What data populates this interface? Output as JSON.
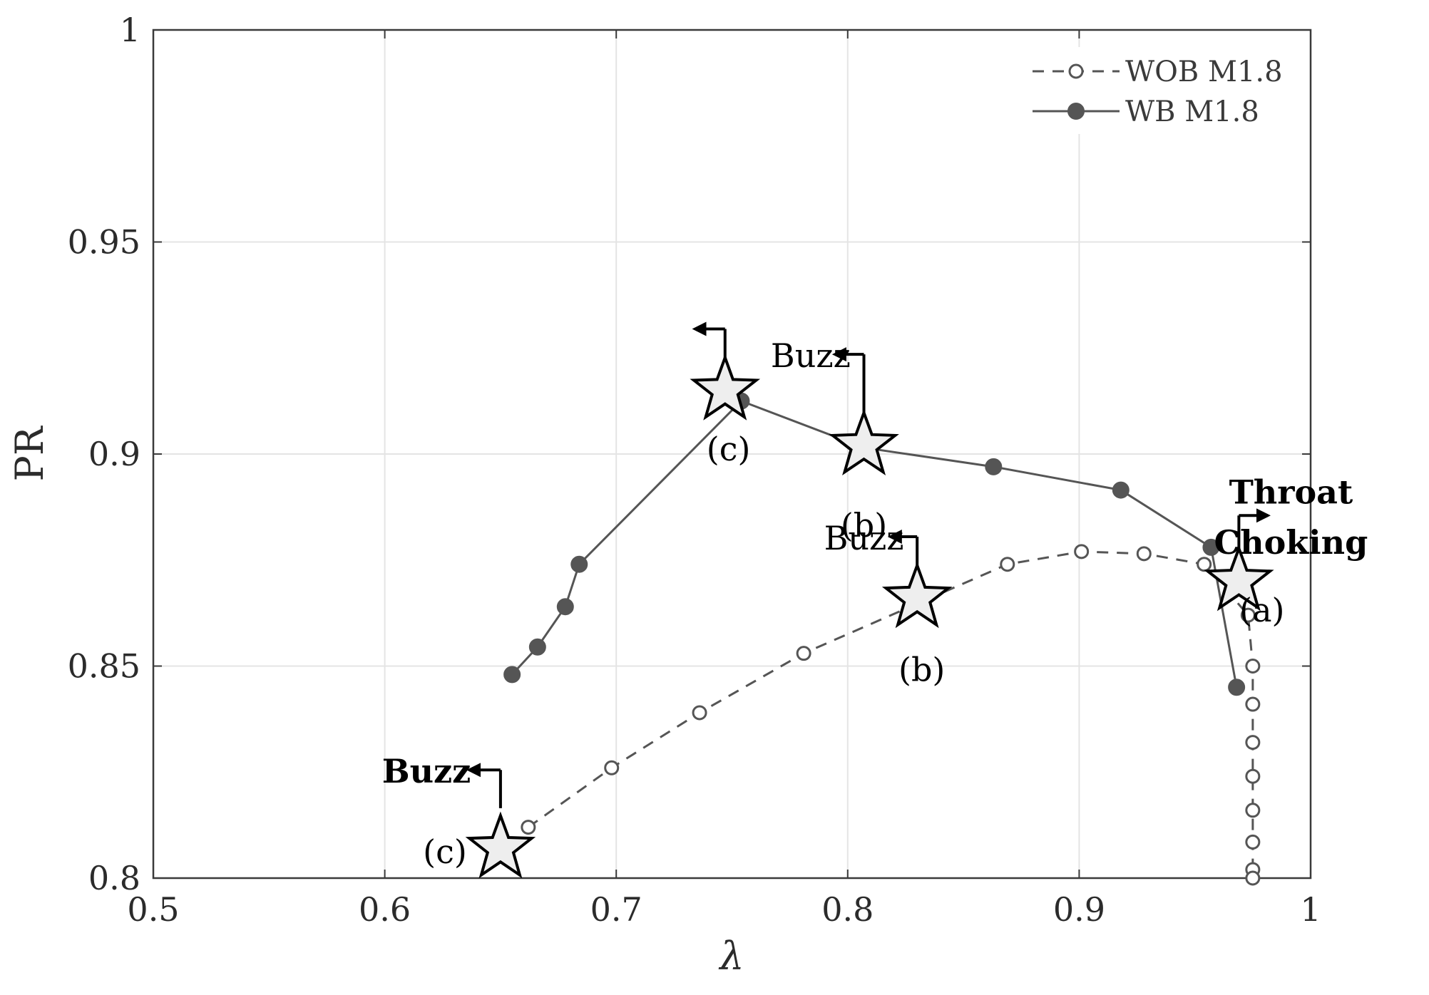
{
  "chart_data": {
    "type": "line",
    "xlabel": "λ",
    "ylabel": "PR",
    "xlim": [
      0.5,
      1.0
    ],
    "ylim": [
      0.8,
      1.0
    ],
    "x_ticks": [
      "0.5",
      "0.6",
      "0.7",
      "0.8",
      "0.9",
      "1"
    ],
    "y_ticks": [
      "0.8",
      "0.85",
      "0.9",
      "0.95",
      "1"
    ],
    "grid": true,
    "legend_position": "top-right",
    "series": [
      {
        "name": "WOB M1.8",
        "style": "dashed",
        "marker": "open-circle",
        "color": "#555555",
        "x": [
          0.662,
          0.698,
          0.736,
          0.781,
          0.869,
          0.901,
          0.928,
          0.954,
          0.973,
          0.975,
          0.975,
          0.975,
          0.975,
          0.975,
          0.975,
          0.975,
          0.975
        ],
        "y": [
          0.812,
          0.826,
          0.839,
          0.853,
          0.874,
          0.877,
          0.8765,
          0.874,
          0.862,
          0.85,
          0.841,
          0.832,
          0.824,
          0.816,
          0.8085,
          0.802,
          0.8
        ]
      },
      {
        "name": "WB M1.8",
        "style": "solid",
        "marker": "filled-circle",
        "color": "#555555",
        "x": [
          0.655,
          0.666,
          0.678,
          0.684,
          0.754,
          0.807,
          0.863,
          0.918,
          0.957,
          0.968
        ],
        "y": [
          0.848,
          0.8545,
          0.864,
          0.874,
          0.9125,
          0.9015,
          0.897,
          0.8915,
          0.878,
          0.845
        ]
      }
    ],
    "annotations": {
      "stars": [
        {
          "x": 0.969,
          "y": 0.87
        },
        {
          "x": 0.807,
          "y": 0.902
        },
        {
          "x": 0.747,
          "y": 0.915
        },
        {
          "x": 0.83,
          "y": 0.866
        },
        {
          "x": 0.65,
          "y": 0.807
        }
      ],
      "labels": [
        {
          "text": "(a)",
          "x": 0.979,
          "y": 0.8605,
          "bold": false
        },
        {
          "text": "(b)",
          "x": 0.807,
          "y": 0.8805,
          "bold": false
        },
        {
          "text": "(c)",
          "x": 0.7485,
          "y": 0.8985,
          "bold": false
        },
        {
          "text": "(b)",
          "x": 0.832,
          "y": 0.8465,
          "bold": false
        },
        {
          "text": "(c)",
          "x": 0.626,
          "y": 0.8035,
          "bold": false
        },
        {
          "text": "Buzz",
          "x": 0.784,
          "y": 0.9205,
          "bold": false
        },
        {
          "text": "Buzz",
          "x": 0.807,
          "y": 0.8775,
          "bold": false
        },
        {
          "text": "Buzz",
          "x": 0.618,
          "y": 0.8225,
          "bold": true
        },
        {
          "text": "Throat",
          "x": 0.9915,
          "y": 0.8883,
          "bold": true
        },
        {
          "text": "Choking",
          "x": 0.9915,
          "y": 0.8765,
          "bold": true
        }
      ],
      "markers": [
        {
          "x": 0.747,
          "y": 0.922,
          "top": 0.9295,
          "dir": "left",
          "len": 0.013
        },
        {
          "x": 0.807,
          "y": 0.9065,
          "top": 0.9235,
          "dir": "left",
          "len": 0.0125
        },
        {
          "x": 0.83,
          "y": 0.8705,
          "top": 0.8805,
          "dir": "left",
          "len": 0.0115
        },
        {
          "x": 0.65,
          "y": 0.8165,
          "top": 0.8255,
          "dir": "left",
          "len": 0.0135
        },
        {
          "x": 0.969,
          "y": 0.8745,
          "top": 0.8855,
          "dir": "right",
          "len": 0.0125
        }
      ]
    }
  }
}
